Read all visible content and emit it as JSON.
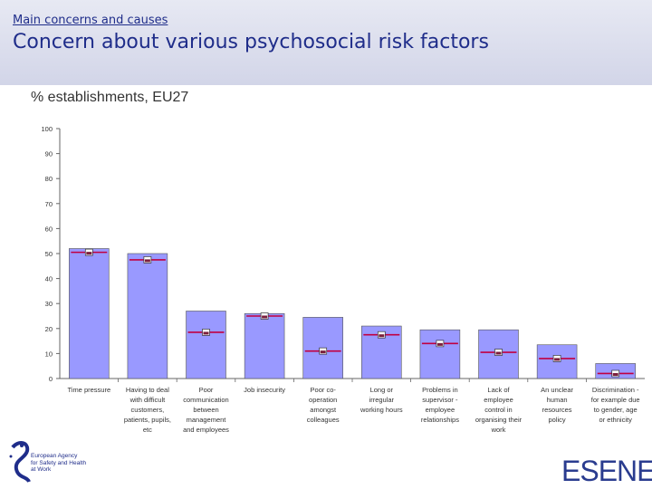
{
  "header": {
    "subtitle": "Main concerns and causes",
    "title": "Concern about various psychosocial risk factors"
  },
  "chart_data": {
    "type": "bar",
    "title": "% establishments, EU27",
    "ylim": [
      0,
      100
    ],
    "yticks": [
      0,
      10,
      20,
      30,
      40,
      50,
      60,
      70,
      80,
      90,
      100
    ],
    "ytick_labels": [
      "0",
      "10",
      "20",
      "30",
      "40",
      "50",
      "60",
      "70",
      "80",
      "90",
      "100"
    ],
    "categories": [
      "Time pressure",
      "Having to deal with difficult customers, patients, pupils, etc",
      "Poor communication between management and employees",
      "Job insecurity",
      "Poor co-operation amongst colleagues",
      "Long or irregular working hours",
      "Problems in supervisor - employee relationships",
      "Lack of employee control in organising their work",
      "An unclear human resources policy",
      "Discrimination - for example due to gender, age or ethnicity"
    ],
    "category_lines": [
      [
        "Time pressure"
      ],
      [
        "Having to deal",
        "with difficult",
        "customers,",
        "patients, pupils,",
        "etc"
      ],
      [
        "Poor",
        "communication",
        "between",
        "management",
        "and employees"
      ],
      [
        "Job insecurity"
      ],
      [
        "Poor co-",
        "operation",
        "amongst",
        "colleagues"
      ],
      [
        "Long or",
        "irregular",
        "working hours"
      ],
      [
        "Problems in",
        "supervisor -",
        "employee",
        "relationships"
      ],
      [
        "Lack of",
        "employee",
        "control in",
        "organising their",
        "work"
      ],
      [
        "An unclear",
        "human",
        "resources",
        "policy"
      ],
      [
        "Discrimination -",
        "for example due",
        "to gender, age",
        "or ethnicity"
      ]
    ],
    "values": [
      52,
      50,
      27,
      26,
      24.5,
      21,
      19.5,
      19.5,
      13.5,
      6
    ],
    "marker_values": [
      50.5,
      47.5,
      18.5,
      25,
      11,
      17.5,
      14,
      10.5,
      8,
      2
    ]
  },
  "logos": {
    "left_text": "European Agency\nfor Safety and Health\nat Work",
    "right_text": "ESENER"
  },
  "colors": {
    "bar_fill": "#9999ff",
    "bar_stroke": "#555555",
    "marker_line": "#c00040",
    "title_color": "#1f2d8a"
  }
}
